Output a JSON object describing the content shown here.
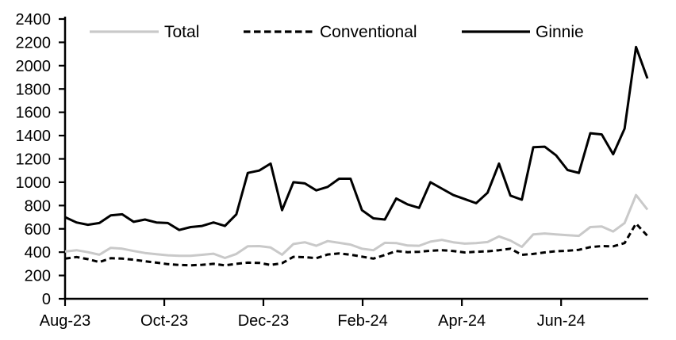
{
  "chart_data": {
    "type": "line",
    "title": "",
    "xlabel": "",
    "ylabel": "",
    "ylim": [
      0,
      2400
    ],
    "y_tick_step": 200,
    "y_ticks": [
      0,
      200,
      400,
      600,
      800,
      1000,
      1200,
      1400,
      1600,
      1800,
      2000,
      2200,
      2400
    ],
    "y_tick_labels": [
      "0",
      "200",
      "400",
      "600",
      "800",
      "1000",
      "1200",
      "1400",
      "1600",
      "1800",
      "2000",
      "2200",
      "2400"
    ],
    "x_tick_labels": [
      "Aug-23",
      "Oct-23",
      "Dec-23",
      "Feb-24",
      "Apr-24",
      "Jun-24"
    ],
    "x_tick_indices": [
      0,
      8.69,
      17.37,
      26.06,
      34.75,
      43.44
    ],
    "x_range_note": "weekly data, Aug-2023 through early Aug-2024",
    "grid": false,
    "legend_position": "top",
    "background_color": "#ffffff",
    "axis_color": "#000000",
    "series": [
      {
        "name": "Total",
        "color": "#c9c9c9",
        "dash": "solid",
        "values": [
          405,
          417,
          400,
          378,
          437,
          430,
          410,
          393,
          382,
          373,
          369,
          369,
          377,
          387,
          350,
          385,
          450,
          452,
          440,
          378,
          470,
          485,
          455,
          495,
          480,
          465,
          430,
          417,
          480,
          478,
          457,
          455,
          490,
          505,
          485,
          473,
          478,
          487,
          535,
          500,
          445,
          553,
          560,
          553,
          546,
          540,
          615,
          620,
          577,
          650,
          890,
          765
        ]
      },
      {
        "name": "Conventional",
        "color": "#000000",
        "dash": "dashed",
        "values": [
          345,
          358,
          340,
          315,
          348,
          345,
          335,
          322,
          310,
          297,
          290,
          287,
          292,
          300,
          287,
          300,
          310,
          308,
          290,
          305,
          360,
          357,
          348,
          380,
          389,
          378,
          362,
          345,
          375,
          410,
          400,
          403,
          412,
          417,
          410,
          398,
          403,
          407,
          417,
          430,
          377,
          385,
          398,
          408,
          412,
          420,
          443,
          452,
          450,
          478,
          645,
          540
        ]
      },
      {
        "name": "Ginnie",
        "color": "#000000",
        "dash": "solid",
        "values": [
          700,
          655,
          635,
          650,
          715,
          725,
          660,
          680,
          655,
          650,
          590,
          615,
          625,
          655,
          625,
          725,
          1080,
          1100,
          1160,
          760,
          1000,
          990,
          930,
          960,
          1030,
          1030,
          760,
          690,
          680,
          860,
          810,
          780,
          1000,
          945,
          890,
          855,
          820,
          910,
          1160,
          885,
          850,
          1300,
          1305,
          1230,
          1105,
          1080,
          1420,
          1410,
          1240,
          1460,
          2160,
          1890
        ]
      }
    ]
  }
}
